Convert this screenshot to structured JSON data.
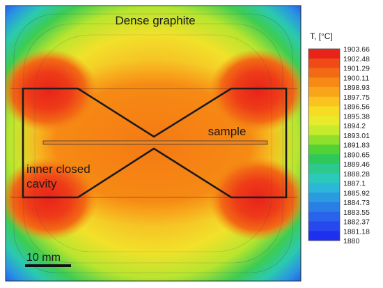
{
  "labels": {
    "top": "Dense graphite",
    "sample": "sample",
    "cavity_line1": "inner closed",
    "cavity_line2": "cavity",
    "scale": "10 mm"
  },
  "colorbar": {
    "title": "T, [°C]",
    "ticks": [
      "1903.66",
      "1902.48",
      "1901.29",
      "1900.11",
      "1898.93",
      "1897.75",
      "1896.56",
      "1895.38",
      "1894.2",
      "1893.01",
      "1891.83",
      "1890.65",
      "1889.46",
      "1888.28",
      "1887.1",
      "1885.92",
      "1884.73",
      "1883.55",
      "1882.37",
      "1881.18",
      "1880"
    ],
    "colors": [
      "#e8231a",
      "#f04a17",
      "#f26a14",
      "#f68a14",
      "#f9a51a",
      "#fbc31f",
      "#f6dc22",
      "#e8ea2a",
      "#c6ea2c",
      "#8fe02c",
      "#52d235",
      "#2ec95a",
      "#2cc98c",
      "#2bc9b9",
      "#2ab7d8",
      "#2a9be0",
      "#2a7fe6",
      "#2963eb",
      "#2748ee",
      "#1e2ff0"
    ]
  }
}
